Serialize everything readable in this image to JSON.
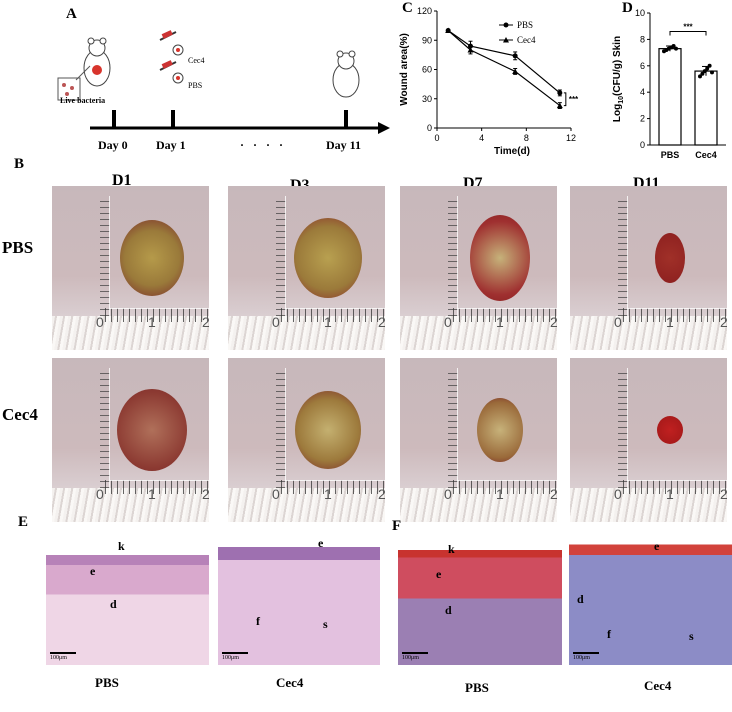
{
  "panels": {
    "A": "A",
    "B": "B",
    "C": "C",
    "D": "D",
    "E": "E",
    "F": "F"
  },
  "timeline": {
    "live_bacteria": "Live bacteria",
    "day0": "Day 0",
    "day1": "Day 1",
    "day11": "Day 11",
    "dots": "· · · ·",
    "cec4": "Cec4",
    "pbs": "PBS"
  },
  "photos": {
    "columns": [
      "D1",
      "D3",
      "D7",
      "D11"
    ],
    "rows": [
      "PBS",
      "Cec4"
    ],
    "ruler_numbers": [
      "0",
      "1",
      "2"
    ]
  },
  "histology": {
    "scale": "100μm",
    "labels_k": "k",
    "labels_e": "e",
    "labels_d": "d",
    "labels_f": "f",
    "labels_s": "s",
    "groups": [
      "PBS",
      "Cec4",
      "PBS",
      "Cec4"
    ]
  },
  "chart_data": [
    {
      "type": "line",
      "title": "",
      "xlabel": "Time(d)",
      "ylabel": "Wound area(%)",
      "xlim": [
        0,
        12
      ],
      "ylim": [
        0,
        120
      ],
      "xticks": [
        0,
        4,
        8,
        12
      ],
      "yticks": [
        0,
        30,
        60,
        90,
        120
      ],
      "legend_placement": "top-right",
      "significance": "***",
      "series": [
        {
          "name": "PBS",
          "marker": "circle",
          "x": [
            1,
            3,
            7,
            11
          ],
          "y": [
            100,
            84,
            74,
            36
          ],
          "err": [
            0,
            5,
            4,
            3
          ]
        },
        {
          "name": "Cec4",
          "marker": "triangle",
          "x": [
            1,
            3,
            7,
            11
          ],
          "y": [
            100,
            80,
            58,
            23
          ],
          "err": [
            0,
            4,
            3,
            3
          ]
        }
      ]
    },
    {
      "type": "bar",
      "title": "",
      "ylabel": "Log10(CFU/g) Skin",
      "ylabel_main": "Log",
      "ylabel_sub": "10",
      "ylabel_rest": "(CFU/g) Skin",
      "categories": [
        "PBS",
        "Cec4"
      ],
      "values": [
        7.3,
        5.6
      ],
      "err": [
        0.2,
        0.35
      ],
      "points": [
        [
          7.1,
          7.2,
          7.3,
          7.4,
          7.5,
          7.3
        ],
        [
          5.2,
          5.4,
          5.6,
          5.8,
          6.0,
          5.5
        ]
      ],
      "ylim": [
        0,
        10
      ],
      "yticks": [
        0,
        2,
        4,
        6,
        8,
        10
      ],
      "significance": "***",
      "colors": {
        "bar": "#ffffff",
        "edge": "#000000"
      }
    }
  ]
}
